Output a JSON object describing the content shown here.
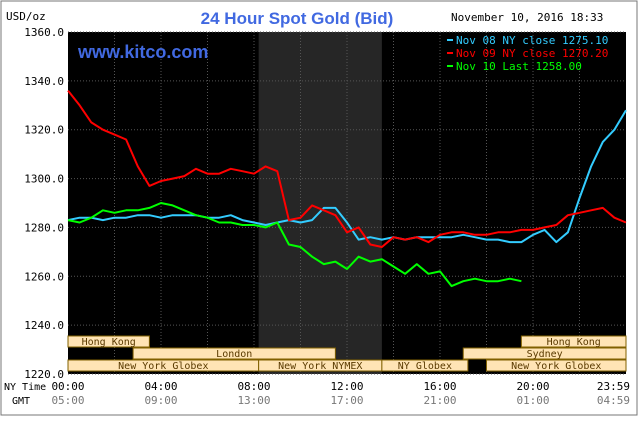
{
  "chart_data": {
    "type": "line",
    "title": "24 Hour Spot Gold (Bid)",
    "subtitle": "www.kitco.com",
    "timestamp": "November 10, 2016 18:33",
    "ylabel": "USD/oz",
    "ylim": [
      1220,
      1360
    ],
    "yticks": [
      "1360.0",
      "1340.0",
      "1320.0",
      "1300.0",
      "1280.0",
      "1260.0",
      "1240.0",
      "1220.0"
    ],
    "ny_time_label": "NY Time",
    "gmt_label": "GMT",
    "xticks_ny": [
      "00:00",
      "04:00",
      "08:00",
      "12:00",
      "16:00",
      "20:00",
      "23:59"
    ],
    "xticks_gmt": [
      "05:00",
      "09:00",
      "13:00",
      "17:00",
      "21:00",
      "01:00",
      "04:59"
    ],
    "x_range_hours": [
      0,
      24
    ],
    "shaded_session_hours": [
      8.2,
      13.5
    ],
    "grid": true,
    "legend_position": "top-right",
    "colors": {
      "background": "#000000",
      "grid": "#555555",
      "title": "#4169e1",
      "axis_text": "#000000",
      "session_fill": "#ffe4b5",
      "session_border": "#806000",
      "session_text": "#5a3a00"
    },
    "series": [
      {
        "name": "Nov 08 NY close 1275.10",
        "color": "#33ccff",
        "x": [
          0,
          0.5,
          1,
          1.5,
          2,
          2.5,
          3,
          3.5,
          4,
          4.5,
          5,
          5.5,
          6,
          6.5,
          7,
          7.5,
          8,
          8.5,
          9,
          9.5,
          10,
          10.5,
          11,
          11.5,
          12,
          12.5,
          13,
          13.5,
          14,
          14.5,
          15,
          15.5,
          16,
          16.5,
          17,
          17.5,
          18,
          18.5,
          19,
          19.5,
          20,
          20.5,
          21,
          21.5,
          22,
          22.5,
          23,
          23.5,
          24
        ],
        "values": [
          1283,
          1284,
          1284,
          1283,
          1284,
          1284,
          1285,
          1285,
          1284,
          1285,
          1285,
          1285,
          1284,
          1284,
          1285,
          1283,
          1282,
          1281,
          1282,
          1283,
          1282,
          1283,
          1288,
          1288,
          1282,
          1275,
          1276,
          1275,
          1276,
          1275,
          1276,
          1276,
          1276,
          1276,
          1277,
          1276,
          1275,
          1275,
          1274,
          1274,
          1277,
          1279,
          1274,
          1278,
          1292,
          1305,
          1315,
          1320,
          1328
        ]
      },
      {
        "name": "Nov 09 NY close 1270.20",
        "color": "#ff0000",
        "x": [
          0,
          0.5,
          1,
          1.5,
          2,
          2.5,
          3,
          3.5,
          4,
          4.5,
          5,
          5.5,
          6,
          6.5,
          7,
          7.5,
          8,
          8.5,
          9,
          9.5,
          10,
          10.5,
          11,
          11.5,
          12,
          12.5,
          13,
          13.5,
          14,
          14.5,
          15,
          15.5,
          16,
          16.5,
          17,
          17.5,
          18,
          18.5,
          19,
          19.5,
          20,
          20.5,
          21,
          21.5,
          22,
          22.5,
          23,
          23.5,
          24
        ],
        "values": [
          1336,
          1330,
          1323,
          1320,
          1318,
          1316,
          1305,
          1297,
          1299,
          1300,
          1301,
          1304,
          1302,
          1302,
          1304,
          1303,
          1302,
          1305,
          1303,
          1283,
          1284,
          1289,
          1287,
          1285,
          1278,
          1280,
          1273,
          1272,
          1276,
          1275,
          1276,
          1274,
          1277,
          1278,
          1278,
          1277,
          1277,
          1278,
          1278,
          1279,
          1279,
          1280,
          1281,
          1285,
          1286,
          1287,
          1288,
          1284,
          1282
        ]
      },
      {
        "name": "Nov 10 Last 1258.00",
        "color": "#00ff00",
        "x": [
          0,
          0.5,
          1,
          1.5,
          2,
          2.5,
          3,
          3.5,
          4,
          4.5,
          5,
          5.5,
          6,
          6.5,
          7,
          7.5,
          8,
          8.5,
          9,
          9.5,
          10,
          10.5,
          11,
          11.5,
          12,
          12.5,
          13,
          13.5,
          14,
          14.5,
          15,
          15.5,
          16,
          16.5,
          17,
          17.5,
          18,
          18.5,
          19,
          19.5
        ],
        "values": [
          1283,
          1282,
          1284,
          1287,
          1286,
          1287,
          1287,
          1288,
          1290,
          1289,
          1287,
          1285,
          1284,
          1282,
          1282,
          1281,
          1281,
          1280,
          1282,
          1273,
          1272,
          1268,
          1265,
          1266,
          1263,
          1268,
          1266,
          1267,
          1264,
          1261,
          1265,
          1261,
          1262,
          1256,
          1258,
          1259,
          1258,
          1258,
          1259,
          1258
        ]
      }
    ],
    "sessions": [
      {
        "label": "Hong Kong",
        "start": 0,
        "end": 3.5
      },
      {
        "label": "London",
        "start": 2.8,
        "end": 11.5
      },
      {
        "label": "New York Globex",
        "start": 0,
        "end": 8.2
      },
      {
        "label": "New York NYMEX",
        "start": 8.2,
        "end": 13.5
      },
      {
        "label": "NY Globex",
        "start": 13.5,
        "end": 17.2
      },
      {
        "label": "Hong Kong",
        "start": 19.5,
        "end": 24
      },
      {
        "label": "Sydney",
        "start": 17.0,
        "end": 24
      },
      {
        "label": "New York Globex",
        "start": 18.0,
        "end": 24
      }
    ]
  }
}
